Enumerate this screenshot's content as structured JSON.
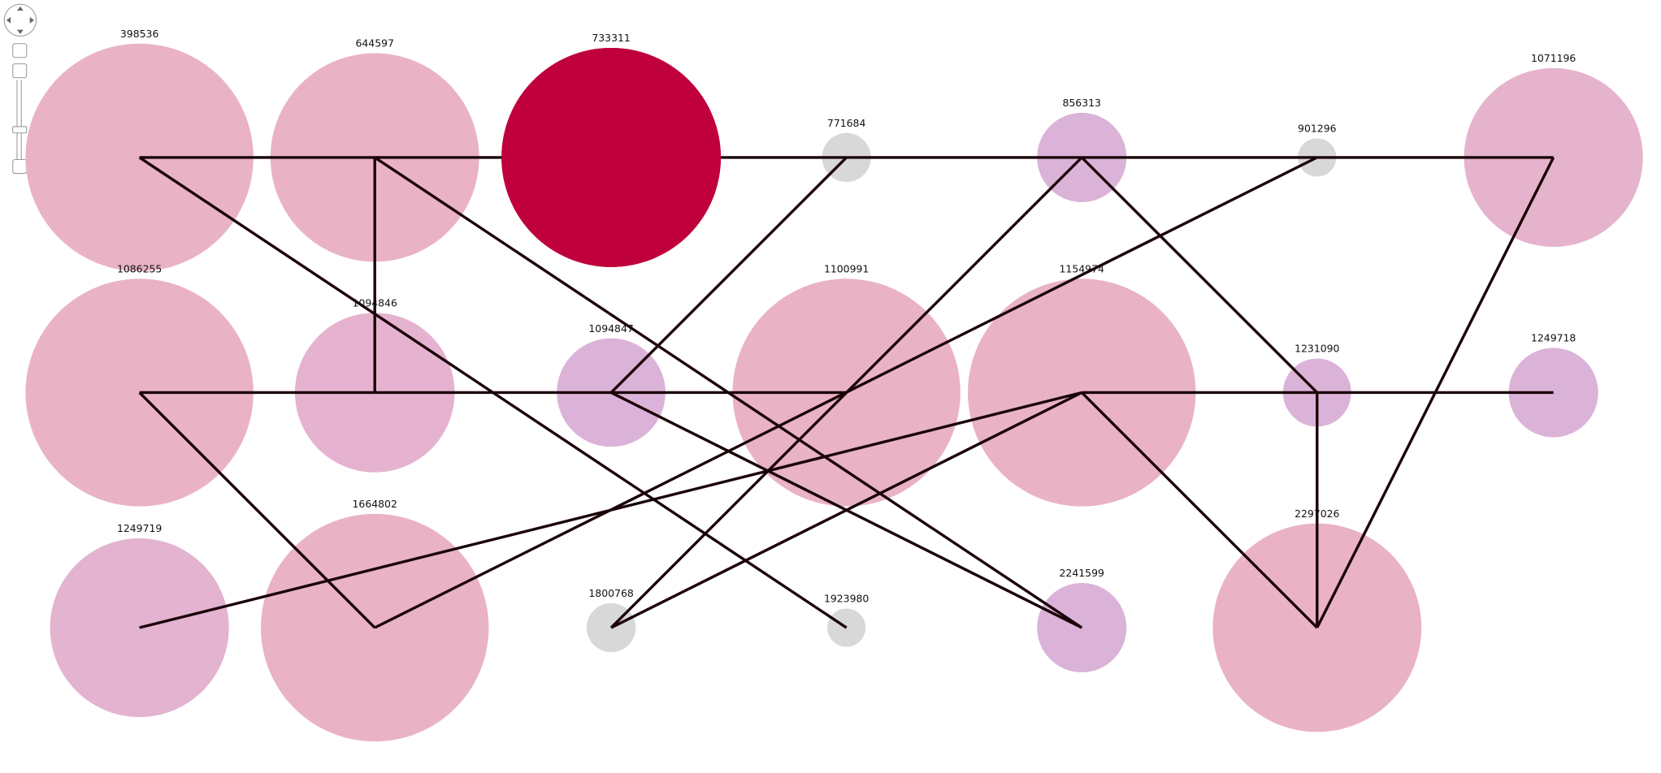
{
  "nodes": [
    {
      "label": "398536"
    },
    {
      "label": "644597"
    },
    {
      "label": "733311"
    },
    {
      "label": "771684"
    },
    {
      "label": "856313"
    },
    {
      "label": "901296"
    },
    {
      "label": "1071196"
    },
    {
      "label": "1086255"
    },
    {
      "label": "1094846"
    },
    {
      "label": "1094847"
    },
    {
      "label": "1100991"
    },
    {
      "label": "1154974"
    },
    {
      "label": "1231090"
    },
    {
      "label": "1249718"
    },
    {
      "label": "1249719"
    },
    {
      "label": "1664802"
    },
    {
      "label": "1800768"
    },
    {
      "label": "1923980"
    },
    {
      "label": "2241599"
    },
    {
      "label": "2297026"
    }
  ]
}
